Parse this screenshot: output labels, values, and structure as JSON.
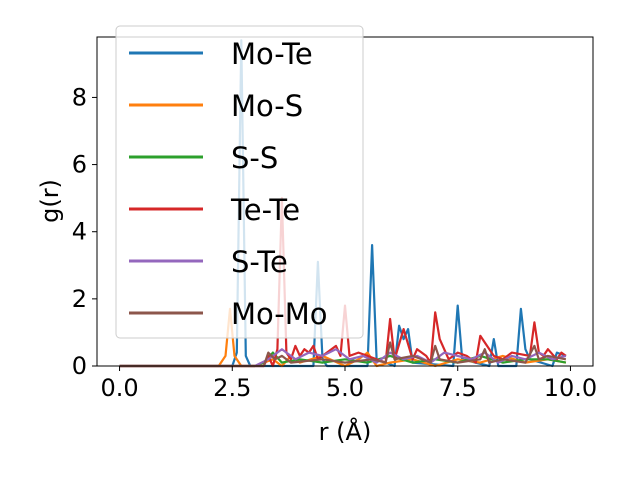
{
  "chart_data": {
    "type": "line",
    "title": "",
    "xlabel": "r (Å)",
    "ylabel": "g(r)",
    "xlim": [
      -0.5,
      10.5
    ],
    "ylim": [
      0,
      9.8
    ],
    "xticks": [
      0.0,
      2.5,
      5.0,
      7.5,
      10.0
    ],
    "xtick_labels": [
      "0.0",
      "2.5",
      "5.0",
      "7.5",
      "10.0"
    ],
    "yticks": [
      0,
      2,
      4,
      6,
      8
    ],
    "ytick_labels": [
      "0",
      "2",
      "4",
      "6",
      "8"
    ],
    "grid": false,
    "legend_placement": "upper-left",
    "series": [
      {
        "name": "Mo-Te",
        "color": "#1f77b4",
        "x": [
          0,
          2.5,
          2.6,
          2.7,
          2.8,
          2.9,
          3.0,
          4.3,
          4.4,
          4.5,
          4.6,
          5.5,
          5.6,
          5.7,
          6.1,
          6.2,
          6.3,
          6.4,
          6.5,
          7.4,
          7.5,
          7.6,
          8.2,
          8.3,
          8.4,
          8.8,
          8.9,
          9.0,
          9.1,
          9.6,
          9.7,
          9.9
        ],
        "y": [
          0,
          0,
          0.4,
          9.7,
          0.3,
          0,
          0,
          0,
          3.1,
          0.2,
          0,
          0,
          3.6,
          0.2,
          0,
          1.2,
          0.8,
          1.1,
          0.1,
          0,
          1.8,
          0.2,
          0,
          0.8,
          0,
          0,
          1.7,
          0.5,
          0.2,
          0,
          0.4,
          0.3
        ]
      },
      {
        "name": "Mo-S",
        "color": "#ff7f0e",
        "x": [
          0,
          2.2,
          2.35,
          2.45,
          2.55,
          2.7,
          3.0,
          3.4,
          3.6,
          3.8,
          4.0,
          4.5,
          5.0,
          5.3,
          5.5,
          5.7,
          6.0,
          6.5,
          7.0,
          7.5,
          8.0,
          8.5,
          9.0,
          9.5,
          9.9
        ],
        "y": [
          0,
          0,
          0.3,
          1.7,
          0.3,
          0,
          0,
          0.2,
          0,
          0.3,
          0.1,
          0.3,
          0,
          0.2,
          0.4,
          0,
          0.1,
          0.2,
          0,
          0.2,
          0.1,
          0.3,
          0.1,
          0.2,
          0.1
        ]
      },
      {
        "name": "S-S",
        "color": "#2ca02c",
        "x": [
          0,
          3.0,
          3.2,
          3.4,
          3.6,
          4.0,
          4.5,
          5.0,
          5.5,
          6.0,
          6.5,
          7.0,
          7.5,
          8.0,
          8.5,
          9.0,
          9.5,
          9.9
        ],
        "y": [
          0,
          0,
          0.1,
          0.4,
          0.1,
          0.2,
          0.1,
          0.2,
          0.1,
          0.3,
          0.1,
          0.2,
          0.1,
          0.3,
          0.1,
          0.2,
          0.2,
          0.1
        ]
      },
      {
        "name": "Te-Te",
        "color": "#d62728",
        "x": [
          0,
          3.2,
          3.3,
          3.4,
          3.5,
          3.6,
          3.7,
          3.8,
          3.9,
          4.0,
          4.1,
          4.2,
          4.3,
          4.4,
          4.8,
          4.9,
          5.0,
          5.1,
          5.3,
          5.5,
          5.7,
          5.9,
          6.0,
          6.1,
          6.3,
          6.5,
          6.6,
          6.8,
          6.9,
          7.0,
          7.1,
          7.3,
          7.5,
          7.7,
          7.9,
          8.0,
          8.1,
          8.3,
          8.5,
          8.7,
          9.1,
          9.2,
          9.3,
          9.4,
          9.5,
          9.7,
          9.8,
          9.9
        ],
        "y": [
          0,
          0,
          0.3,
          0,
          0.5,
          5.0,
          0.4,
          0.2,
          0.6,
          0.3,
          0.5,
          0.4,
          0.6,
          0.2,
          0.6,
          0.3,
          1.8,
          0.3,
          0.4,
          0.3,
          0.2,
          0.1,
          1.4,
          0.2,
          1.1,
          0.2,
          0.5,
          0.3,
          0.1,
          1.6,
          0.8,
          0.2,
          0.4,
          0.3,
          0.1,
          0.9,
          0.7,
          0.3,
          0.2,
          0.4,
          0.3,
          1.3,
          0.4,
          0.3,
          0.5,
          0.2,
          0.4,
          0.3
        ]
      },
      {
        "name": "S-Te",
        "color": "#9467bd",
        "x": [
          0,
          3.0,
          3.3,
          3.6,
          3.9,
          4.2,
          4.5,
          4.8,
          5.1,
          5.4,
          5.7,
          6.0,
          6.3,
          6.6,
          6.9,
          7.2,
          7.5,
          7.8,
          8.1,
          8.4,
          8.7,
          9.0,
          9.3,
          9.6,
          9.9
        ],
        "y": [
          0,
          0,
          0.2,
          0.5,
          0.2,
          0.4,
          0.3,
          0.5,
          0.2,
          0.3,
          0.1,
          0.4,
          0.2,
          0.3,
          0.1,
          0.4,
          0.3,
          0.2,
          0.4,
          0.1,
          0.3,
          0.2,
          0.4,
          0.2,
          0.3
        ]
      },
      {
        "name": "Mo-Mo",
        "color": "#8c564b",
        "x": [
          0,
          3.2,
          3.3,
          3.45,
          3.6,
          3.8,
          4.5,
          5.0,
          5.6,
          5.9,
          6.0,
          6.1,
          6.5,
          6.9,
          7.0,
          7.1,
          7.5,
          8.0,
          8.1,
          8.2,
          8.5,
          9.0,
          9.2,
          9.3,
          9.5,
          9.9
        ],
        "y": [
          0,
          0,
          0.4,
          0.2,
          0.3,
          0.1,
          0.2,
          0.1,
          0.2,
          0.1,
          0.7,
          0.2,
          0.3,
          0.1,
          0.6,
          0.2,
          0.1,
          0.2,
          0.5,
          0.1,
          0.2,
          0.1,
          0.6,
          0.2,
          0.3,
          0.2
        ]
      }
    ]
  }
}
